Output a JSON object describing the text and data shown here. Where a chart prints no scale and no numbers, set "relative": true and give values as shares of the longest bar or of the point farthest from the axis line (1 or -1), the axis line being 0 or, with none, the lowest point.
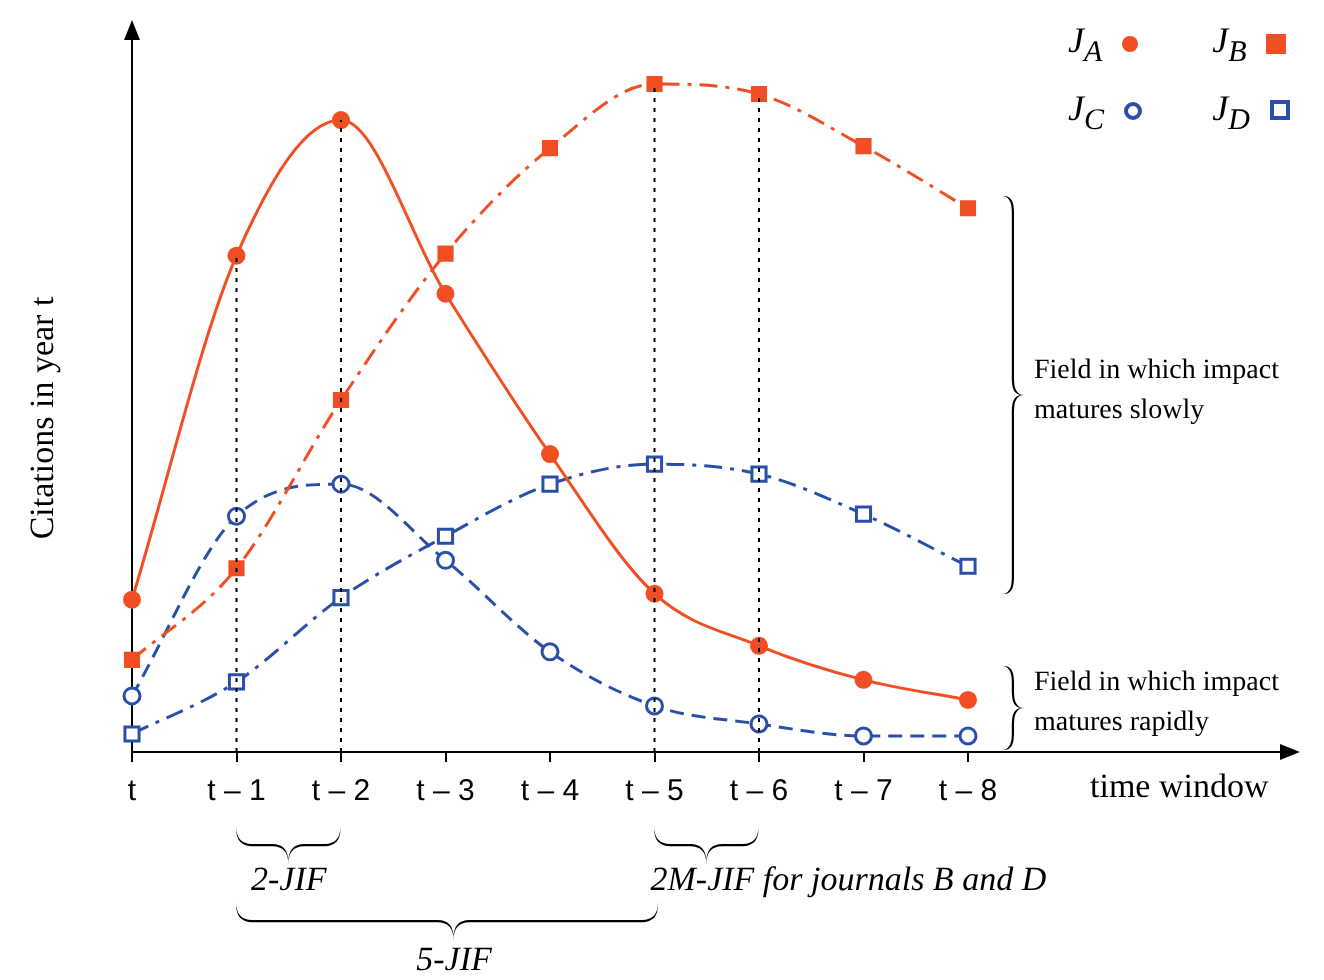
{
  "chart_data": {
    "type": "line",
    "relative": true,
    "xlabel": "time window",
    "ylabel": "Citations in year t",
    "categories": [
      "t",
      "t – 1",
      "t – 2",
      "t – 3",
      "t – 4",
      "t – 5",
      "t – 6",
      "t – 7",
      "t – 8"
    ],
    "series": [
      {
        "name": "J$_{A}$",
        "color": "#f04e23",
        "marker": "circle",
        "line_style": "solid",
        "values": [
          0.228,
          0.743,
          0.946,
          0.686,
          0.446,
          0.237,
          0.159,
          0.108,
          0.078
        ]
      },
      {
        "name": "J$_{B}$",
        "color": "#f04e23",
        "marker": "square",
        "line_style": "dashdot",
        "values": [
          0.138,
          0.275,
          0.527,
          0.746,
          0.904,
          1,
          0.985,
          0.907,
          0.814
        ]
      },
      {
        "name": "J$_{C}$",
        "color": "#2a4fa8",
        "marker": "circle",
        "line_style": "dashed",
        "values": [
          0.084,
          0.353,
          0.401,
          0.287,
          0.15,
          0.069,
          0.042,
          0.024,
          0.024
        ]
      },
      {
        "name": "J$_{D}$",
        "color": "#2a4fa8",
        "marker": "square",
        "line_style": "dashdot",
        "values": [
          0.027,
          0.105,
          0.231,
          0.323,
          0.401,
          0.431,
          0.416,
          0.356,
          0.278
        ]
      }
    ],
    "ref_lines": [
      {
        "axis": "x",
        "value": "t – 1",
        "line_style": "dotted",
        "color": "#000000"
      },
      {
        "axis": "x",
        "value": "t – 2",
        "line_style": "dotted",
        "color": "#000000"
      },
      {
        "axis": "x",
        "value": "t – 5",
        "line_style": "dotted",
        "color": "#000000"
      },
      {
        "axis": "x",
        "value": "t – 6",
        "line_style": "dotted",
        "color": "#000000"
      }
    ],
    "annotations": [
      "2-JIF",
      "5-JIF",
      "2M-JIF for journals B and D",
      "Field in which impact matures slowly",
      "Field in which impact matures rapidly"
    ],
    "legend": "top right"
  }
}
